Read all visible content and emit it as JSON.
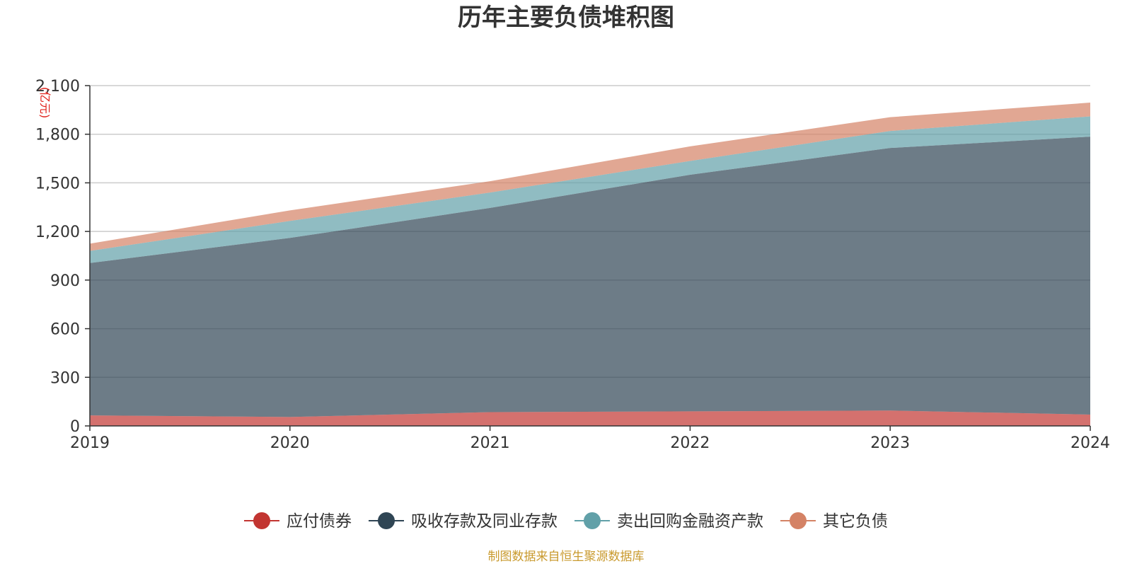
{
  "colors": {
    "bonds": "#c23531",
    "deposits": "#2f4554",
    "repo": "#61a0a8",
    "other": "#d48265",
    "grid": "#cccccc",
    "axis": "#333333",
    "source": "#c99a2e",
    "unit": "#e0201a"
  },
  "chart_data": {
    "type": "area",
    "stacked": true,
    "title": "历年主要负债堆积图",
    "ylabel": "(亿元)",
    "xlabel": "",
    "x": [
      "2019",
      "2020",
      "2021",
      "2022",
      "2023",
      "2024"
    ],
    "ylim": [
      0,
      2100
    ],
    "yticks": [
      0,
      300,
      600,
      900,
      1200,
      1500,
      1800,
      2100
    ],
    "ytick_labels": [
      "0",
      "300",
      "600",
      "900",
      "1,200",
      "1,500",
      "1,800",
      "2,100"
    ],
    "grid": true,
    "legend_position": "bottom",
    "series": [
      {
        "name": "应付债券",
        "color_key": "bonds",
        "opacity": 0.7,
        "values": [
          65,
          55,
          85,
          90,
          95,
          70
        ]
      },
      {
        "name": "吸收存款及同业存款",
        "color_key": "deposits",
        "opacity": 0.7,
        "values": [
          940,
          1105,
          1260,
          1460,
          1620,
          1715
        ]
      },
      {
        "name": "卖出回购金融资产款",
        "color_key": "repo",
        "opacity": 0.7,
        "values": [
          75,
          105,
          95,
          85,
          105,
          125
        ]
      },
      {
        "name": "其它负债",
        "color_key": "other",
        "opacity": 0.7,
        "values": [
          45,
          65,
          70,
          90,
          85,
          85
        ]
      }
    ]
  },
  "footer": {
    "source": "制图数据来自恒生聚源数据库"
  }
}
